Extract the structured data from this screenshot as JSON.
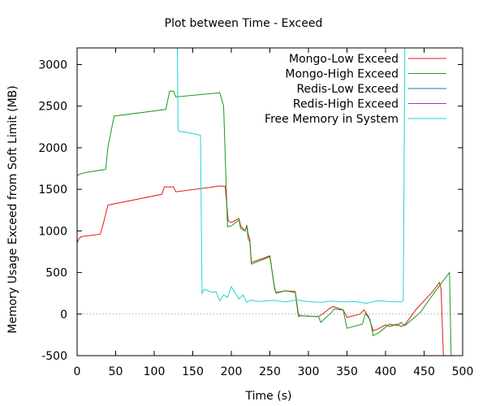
{
  "chart_data": {
    "type": "line",
    "title": "Plot between Time - Exceed",
    "xlabel": "Time (s)",
    "ylabel": "Memory Usage Exceed from Soft Limit (MB)",
    "xlim": [
      0,
      500
    ],
    "ylim": [
      -500,
      3200
    ],
    "xticks": [
      0,
      50,
      100,
      150,
      200,
      250,
      300,
      350,
      400,
      450,
      500
    ],
    "yticks": [
      -500,
      0,
      500,
      1000,
      1500,
      2000,
      2500,
      3000
    ],
    "grid": false,
    "zero_line": true,
    "legend_position": "top-right",
    "series": [
      {
        "name": "Mongo-Low Exceed",
        "color": "#e41a1c",
        "x": [
          0,
          2,
          5,
          30,
          33,
          40,
          110,
          113,
          125,
          128,
          170,
          185,
          192,
          196,
          200,
          210,
          212,
          218,
          220,
          222,
          224,
          226,
          250,
          256,
          258,
          270,
          283,
          287,
          290,
          313,
          318,
          328,
          332,
          345,
          350,
          367,
          372,
          378,
          384,
          390,
          400,
          405,
          415,
          420,
          425,
          440,
          460,
          470,
          472,
          475
        ],
        "y": [
          850,
          900,
          930,
          960,
          1050,
          1310,
          1440,
          1530,
          1530,
          1470,
          1520,
          1540,
          1535,
          1120,
          1100,
          1150,
          1060,
          1000,
          1070,
          950,
          900,
          620,
          700,
          320,
          260,
          280,
          270,
          0,
          -20,
          -30,
          0,
          70,
          90,
          50,
          -40,
          0,
          50,
          -30,
          -200,
          -180,
          -130,
          -150,
          -120,
          -150,
          -130,
          60,
          260,
          380,
          300,
          -500
        ]
      },
      {
        "name": "Mongo-High Exceed",
        "color": "#1a9a1a",
        "x": [
          0,
          3,
          10,
          37,
          40,
          48,
          115,
          120,
          125,
          128,
          185,
          190,
          195,
          200,
          210,
          212,
          218,
          220,
          222,
          224,
          226,
          250,
          256,
          258,
          270,
          283,
          287,
          290,
          313,
          316,
          330,
          333,
          345,
          350,
          370,
          374,
          380,
          384,
          392,
          405,
          415,
          420,
          425,
          445,
          465,
          483,
          485
        ],
        "y": [
          1660,
          1680,
          1700,
          1740,
          2010,
          2380,
          2460,
          2680,
          2680,
          2610,
          2660,
          2500,
          1050,
          1060,
          1130,
          1030,
          1000,
          1060,
          900,
          870,
          600,
          690,
          310,
          250,
          280,
          260,
          -30,
          -20,
          -30,
          -100,
          20,
          60,
          50,
          -170,
          -120,
          10,
          -70,
          -260,
          -220,
          -120,
          -140,
          -100,
          -140,
          20,
          280,
          500,
          -500
        ]
      },
      {
        "name": "Redis-Low Exceed",
        "color": "#1f78b4",
        "x": [],
        "y": []
      },
      {
        "name": "Redis-High Exceed",
        "color": "#9b30c9",
        "x": [],
        "y": []
      },
      {
        "name": "Free Memory in System",
        "color": "#22d3d3",
        "x": [
          130,
          131,
          132,
          150,
          160,
          162,
          165,
          175,
          180,
          185,
          190,
          195,
          200,
          210,
          215,
          220,
          225,
          235,
          255,
          270,
          285,
          300,
          315,
          330,
          345,
          360,
          375,
          390,
          405,
          420,
          423,
          425
        ],
        "y": [
          3200,
          2220,
          2200,
          2170,
          2150,
          250,
          300,
          260,
          270,
          160,
          230,
          200,
          330,
          180,
          230,
          140,
          170,
          150,
          165,
          145,
          170,
          150,
          140,
          155,
          145,
          150,
          130,
          160,
          150,
          145,
          160,
          3200
        ]
      }
    ]
  }
}
